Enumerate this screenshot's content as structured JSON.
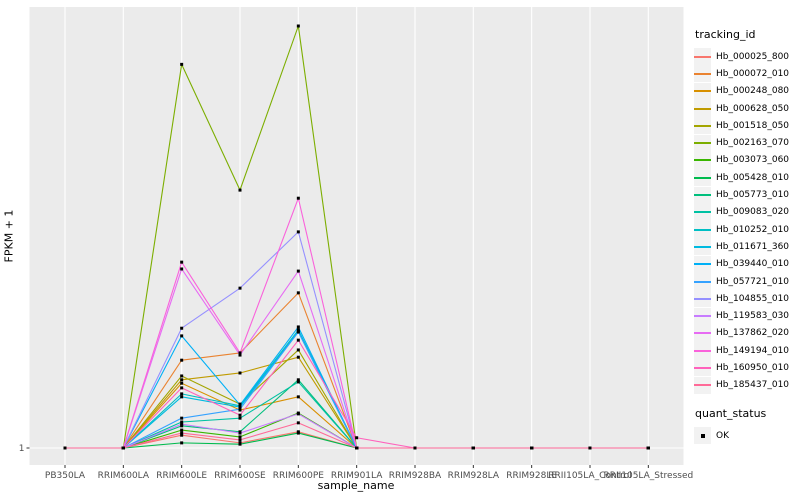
{
  "figure": {
    "background": "#ffffff",
    "panel_background": "#ebebeb",
    "grid_color": "#ffffff",
    "axis_text_color": "#4d4d4d",
    "tick_color": "#333333"
  },
  "chart_data": {
    "type": "line",
    "title": "",
    "xlabel": "sample_name",
    "ylabel": "FPKM + 1",
    "legend_position": "right",
    "grid": "vertical major gridline per category, horizontal gridline at y=1",
    "point_shape": "filled-square",
    "point_color": "#000000",
    "y_axis": {
      "breaks": [
        1
      ],
      "tick_labels": [
        "1"
      ],
      "ylim": [
        -1.3,
        104.7
      ]
    },
    "categories": [
      "PB350LA",
      "RRIM600LA",
      "RRIM600LE",
      "RRIM600SE",
      "RRIM600PE",
      "RRIM901LA",
      "RRIM928BA",
      "RRIM928LA",
      "RRIM928LE",
      "RRII105LA_Control",
      "RRII105LA_Stressed"
    ],
    "series": [
      {
        "name": "Hb_000025_800",
        "color": "#F8766D",
        "values": [
          1,
          1,
          4.0,
          2.2,
          4.8,
          1,
          1,
          1,
          1,
          1,
          1
        ]
      },
      {
        "name": "Hb_000072_010",
        "color": "#EA8331",
        "values": [
          1,
          1,
          21.6,
          23.3,
          37.4,
          1,
          1,
          1,
          1,
          1,
          1
        ]
      },
      {
        "name": "Hb_000248_080",
        "color": "#D89000",
        "values": [
          1,
          1,
          16.2,
          9.9,
          13.0,
          1,
          1,
          1,
          1,
          1,
          1
        ]
      },
      {
        "name": "Hb_000628_050",
        "color": "#C09B00",
        "values": [
          1,
          1,
          17.0,
          18.6,
          22.3,
          1,
          1,
          1,
          1,
          1,
          1
        ]
      },
      {
        "name": "Hb_001518_050",
        "color": "#A3A500",
        "values": [
          1,
          1,
          17.9,
          11.3,
          24.0,
          1,
          1,
          1,
          1,
          1,
          1
        ]
      },
      {
        "name": "Hb_002163_070",
        "color": "#7CAE00",
        "values": [
          1,
          1,
          91.0,
          61.5,
          100.0,
          1,
          1,
          1,
          1,
          1,
          1
        ]
      },
      {
        "name": "Hb_003073_060",
        "color": "#39B600",
        "values": [
          1,
          1,
          5.2,
          3.6,
          9.2,
          1,
          1,
          1,
          1,
          1,
          1
        ]
      },
      {
        "name": "Hb_005428_010",
        "color": "#00BB4E",
        "values": [
          1,
          1,
          2.2,
          1.9,
          4.5,
          1,
          1,
          1,
          1,
          1,
          1
        ]
      },
      {
        "name": "Hb_005773_010",
        "color": "#00BF7D",
        "values": [
          1,
          1,
          6.2,
          4.8,
          17.0,
          1,
          1,
          1,
          1,
          1,
          1
        ]
      },
      {
        "name": "Hb_009083_020",
        "color": "#00C1A3",
        "values": [
          1,
          1,
          7.1,
          8.0,
          16.5,
          1,
          1,
          1,
          1,
          1,
          1
        ]
      },
      {
        "name": "Hb_010252_010",
        "color": "#00BFC4",
        "values": [
          1,
          1,
          13.7,
          10.9,
          28.7,
          1,
          1,
          1,
          1,
          1,
          1
        ]
      },
      {
        "name": "Hb_011671_360",
        "color": "#00BAE0",
        "values": [
          1,
          1,
          13.0,
          10.6,
          28.4,
          1,
          1,
          1,
          1,
          1,
          1
        ]
      },
      {
        "name": "Hb_039440_010",
        "color": "#00B0F6",
        "values": [
          1,
          1,
          27.3,
          11.1,
          29.4,
          1,
          1,
          1,
          1,
          1,
          1
        ]
      },
      {
        "name": "Hb_057721_010",
        "color": "#35A2FF",
        "values": [
          1,
          1,
          8.0,
          10.1,
          28.2,
          1,
          1,
          1,
          1,
          1,
          1
        ]
      },
      {
        "name": "Hb_104855_010",
        "color": "#9590FF",
        "values": [
          1,
          1,
          29.1,
          38.5,
          51.7,
          1,
          1,
          1,
          1,
          1,
          1
        ]
      },
      {
        "name": "Hb_119583_030",
        "color": "#C77CFF",
        "values": [
          1,
          1,
          6.6,
          4.5,
          9.0,
          1,
          1,
          1,
          1,
          1,
          1
        ]
      },
      {
        "name": "Hb_137862_020",
        "color": "#E76BF3",
        "values": [
          1,
          1,
          43.0,
          22.8,
          42.5,
          1,
          1,
          1,
          1,
          1,
          1
        ]
      },
      {
        "name": "Hb_149194_010",
        "color": "#FA62DB",
        "values": [
          1,
          1,
          44.6,
          23.3,
          59.6,
          1,
          1,
          1,
          1,
          1,
          1
        ]
      },
      {
        "name": "Hb_160950_010",
        "color": "#FF62BC",
        "values": [
          1,
          1,
          15.1,
          8.7,
          26.3,
          3.4,
          1,
          1,
          1,
          1,
          1
        ]
      },
      {
        "name": "Hb_185437_010",
        "color": "#FF6A98",
        "values": [
          1,
          1,
          4.5,
          2.9,
          6.9,
          1,
          1,
          1,
          1,
          1,
          1
        ]
      }
    ]
  },
  "legend": {
    "tracking_title": "tracking_id",
    "quant_title": "quant_status",
    "quant_items": [
      {
        "label": "OK"
      }
    ],
    "key_background": "#f2f2f2"
  }
}
